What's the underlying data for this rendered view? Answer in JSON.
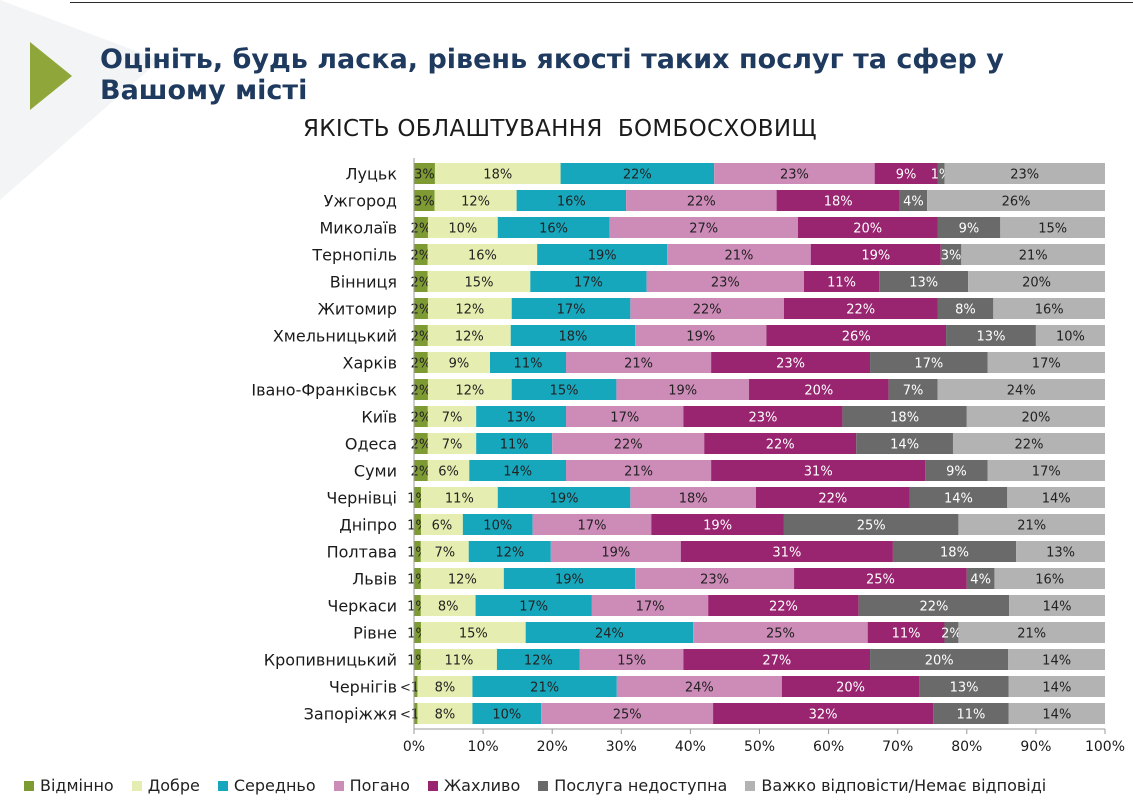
{
  "page": {
    "title": "Оцініть, будь ласка, рівень якості таких послуг та сфер у Вашому місті"
  },
  "chart_data": {
    "type": "bar",
    "orientation": "horizontal",
    "stacked": true,
    "title": "ЯКІСТЬ ОБЛАШТУВАННЯ  БОМБОСХОВИЩ",
    "xlim": [
      0,
      100
    ],
    "x_ticks": [
      "0%",
      "10%",
      "20%",
      "30%",
      "40%",
      "50%",
      "60%",
      "70%",
      "80%",
      "90%",
      "100%"
    ],
    "legend_position": "bottom",
    "categories": [
      "Луцьк",
      "Ужгород",
      "Миколаїв",
      "Тернопіль",
      "Вінниця",
      "Житомир",
      "Хмельницький",
      "Харків",
      "Івано-Франківськ",
      "Київ",
      "Одеса",
      "Суми",
      "Чернівці",
      "Дніпро",
      "Полтава",
      "Львів",
      "Черкаси",
      "Рівне",
      "Кропивницький",
      "Чернігів",
      "Запоріжжя"
    ],
    "series": [
      {
        "name": "Відмінно",
        "color": "#7e9a33",
        "values": [
          3,
          3,
          2,
          2,
          2,
          2,
          2,
          2,
          2,
          2,
          2,
          2,
          1,
          1,
          1,
          1,
          1,
          1,
          1,
          0.5,
          0.5
        ],
        "labels": [
          "3%",
          "3%",
          "2%",
          "2%",
          "2%",
          "2%",
          "2%",
          "2%",
          "2%",
          "2%",
          "2%",
          "2%",
          "1%",
          "1%",
          "1%",
          "1%",
          "1%",
          "1%",
          "1%",
          "<1%",
          "<1%"
        ]
      },
      {
        "name": "Добре",
        "color": "#e5eeb0",
        "values": [
          18,
          12,
          10,
          16,
          15,
          12,
          12,
          9,
          12,
          7,
          7,
          6,
          11,
          6,
          7,
          12,
          8,
          15,
          11,
          8,
          8
        ],
        "labels": [
          "18%",
          "12%",
          "10%",
          "16%",
          "15%",
          "12%",
          "12%",
          "9%",
          "12%",
          "7%",
          "7%",
          "6%",
          "11%",
          "6%",
          "7%",
          "12%",
          "8%",
          "15%",
          "11%",
          "8%",
          "8%"
        ]
      },
      {
        "name": "Середньо",
        "color": "#17a7bd",
        "values": [
          22,
          16,
          16,
          19,
          17,
          17,
          18,
          11,
          15,
          13,
          11,
          14,
          19,
          10,
          12,
          19,
          17,
          24,
          12,
          21,
          10
        ],
        "labels": [
          "22%",
          "16%",
          "16%",
          "19%",
          "17%",
          "17%",
          "18%",
          "11%",
          "15%",
          "13%",
          "11%",
          "14%",
          "19%",
          "10%",
          "12%",
          "19%",
          "17%",
          "24%",
          "12%",
          "21%",
          "10%"
        ]
      },
      {
        "name": "Погано",
        "color": "#cd8bb8",
        "values": [
          23,
          22,
          27,
          21,
          23,
          22,
          19,
          21,
          19,
          17,
          22,
          21,
          18,
          17,
          19,
          23,
          17,
          25,
          15,
          24,
          25
        ],
        "labels": [
          "23%",
          "22%",
          "27%",
          "21%",
          "23%",
          "22%",
          "19%",
          "21%",
          "19%",
          "17%",
          "22%",
          "21%",
          "18%",
          "17%",
          "19%",
          "23%",
          "17%",
          "25%",
          "15%",
          "24%",
          "25%"
        ]
      },
      {
        "name": "Жахливо",
        "color": "#99246f",
        "values": [
          9,
          18,
          20,
          19,
          11,
          22,
          26,
          23,
          20,
          23,
          22,
          31,
          22,
          19,
          31,
          25,
          22,
          11,
          27,
          20,
          32
        ],
        "labels": [
          "9%",
          "18%",
          "20%",
          "19%",
          "11%",
          "22%",
          "26%",
          "23%",
          "20%",
          "23%",
          "22%",
          "31%",
          "22%",
          "19%",
          "31%",
          "25%",
          "22%",
          "11%",
          "27%",
          "20%",
          "32%"
        ]
      },
      {
        "name": "Послуга недоступна",
        "color": "#6a6a6a",
        "values": [
          1,
          4,
          9,
          3,
          13,
          8,
          13,
          17,
          7,
          18,
          14,
          9,
          14,
          25,
          18,
          4,
          22,
          2,
          20,
          13,
          11
        ],
        "labels": [
          "1%",
          "4%",
          "9%",
          "3%",
          "13%",
          "8%",
          "13%",
          "17%",
          "7%",
          "18%",
          "14%",
          "9%",
          "14%",
          "25%",
          "18%",
          "4%",
          "22%",
          "2%",
          "20%",
          "13%",
          "11%"
        ]
      },
      {
        "name": "Важко відповісти/Немає відповіді",
        "color": "#b3b3b3",
        "values": [
          23,
          26,
          15,
          21,
          20,
          16,
          10,
          17,
          24,
          20,
          22,
          17,
          14,
          21,
          13,
          16,
          14,
          21,
          14,
          14,
          14
        ],
        "labels": [
          "23%",
          "26%",
          "15%",
          "21%",
          "20%",
          "16%",
          "10%",
          "17%",
          "24%",
          "20%",
          "22%",
          "17%",
          "14%",
          "21%",
          "13%",
          "16%",
          "14%",
          "21%",
          "14%",
          "14%",
          "14%"
        ]
      }
    ]
  }
}
